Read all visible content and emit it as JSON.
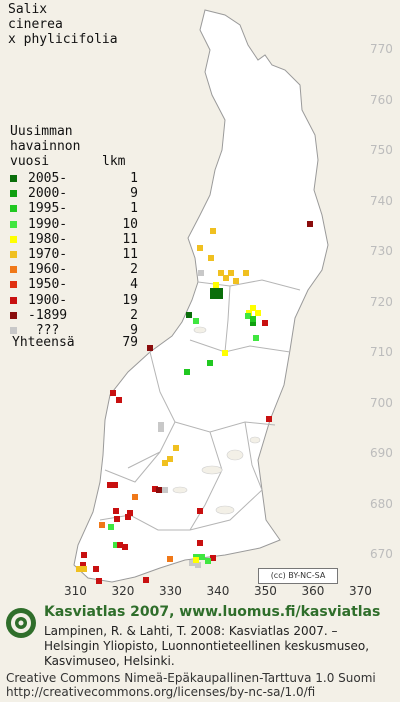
{
  "species": [
    "Salix",
    "cinerea",
    "x phylicifolia"
  ],
  "legend": {
    "heading": [
      "Uusimman",
      "havainnon",
      "vuosi"
    ],
    "count_header": "lkm",
    "entries": [
      {
        "label": "2005-",
        "count": "1",
        "color": "#0a6e0a"
      },
      {
        "label": "2000-",
        "count": "9",
        "color": "#10a010"
      },
      {
        "label": "1995-",
        "count": "1",
        "color": "#20c820"
      },
      {
        "label": "1990-",
        "count": "10",
        "color": "#40e640"
      },
      {
        "label": "1980-",
        "count": "11",
        "color": "#ffff00"
      },
      {
        "label": "1970-",
        "count": "11",
        "color": "#f0c020"
      },
      {
        "label": "1960-",
        "count": "2",
        "color": "#f07818"
      },
      {
        "label": "1950-",
        "count": "4",
        "color": "#e03010"
      },
      {
        "label": "1900-",
        "count": "19",
        "color": "#c81010"
      },
      {
        "label": "-1899",
        "count": "2",
        "color": "#8a0c0c"
      },
      {
        "label": " ???",
        "count": "9",
        "color": "#c8c8c8"
      }
    ],
    "total_label": "Yhteensä",
    "total_count": "79"
  },
  "axes": {
    "y_ticks": [
      "770",
      "760",
      "750",
      "740",
      "730",
      "720",
      "710",
      "700",
      "690",
      "680",
      "670"
    ],
    "x_ticks": [
      "310",
      "320",
      "330",
      "340",
      "350",
      "360",
      "370"
    ]
  },
  "license_badge": "(cc) BY-NC-SA",
  "footer": {
    "title": "Kasviatlas 2007, www.luomus.fi/kasviatlas",
    "citation": [
      "Lampinen, R. & Lahti, T. 2008: Kasviatlas 2007. –",
      "Helsingin Yliopisto, Luonnontieteellinen keskusmuseo,",
      "Kasvimuseo, Helsinki."
    ],
    "license_lines": [
      "Creative Commons Nimeä-Epäkaupallinen-Tarttuva 1.0 Suomi",
      "http://creativecommons.org/licenses/by-nc-sa/1.0/fi"
    ]
  },
  "colors": {
    "land": "#ffffff",
    "water": "#f3f0e7",
    "boundary": "#b5b5b5",
    "brand": "#2f6e2b"
  }
}
